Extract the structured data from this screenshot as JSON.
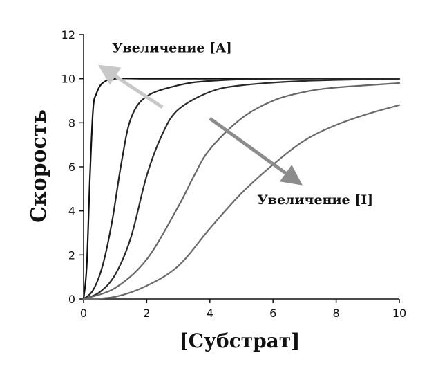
{
  "chart_data": {
    "type": "line",
    "xlabel": "[Субстрат]",
    "ylabel": "Скорость",
    "xlim": [
      0,
      10
    ],
    "ylim": [
      0,
      12
    ],
    "xticks": [
      0,
      2,
      4,
      6,
      8,
      10
    ],
    "yticks": [
      0,
      2,
      4,
      6,
      8,
      10,
      12
    ],
    "grid": false,
    "series": [
      {
        "x": [
          0,
          0.1,
          0.2,
          0.3,
          0.4,
          0.6,
          1,
          2,
          4,
          10
        ],
        "values": [
          0,
          1.5,
          5.5,
          8.6,
          9.3,
          9.8,
          10,
          10,
          10,
          10
        ]
      },
      {
        "x": [
          0,
          0.3,
          0.6,
          0.9,
          1.2,
          1.5,
          2,
          3,
          4,
          6,
          10
        ],
        "values": [
          0,
          0.4,
          1.5,
          3.5,
          6.2,
          8.2,
          9.2,
          9.7,
          9.9,
          10,
          10
        ]
      },
      {
        "x": [
          0,
          0.5,
          1,
          1.5,
          2,
          2.5,
          3,
          4,
          5,
          7,
          10
        ],
        "values": [
          0,
          0.3,
          1.1,
          2.8,
          5.6,
          7.5,
          8.6,
          9.4,
          9.7,
          9.9,
          10
        ]
      },
      {
        "x": [
          0,
          1,
          2,
          3,
          3.5,
          4,
          5,
          6,
          7,
          8,
          10
        ],
        "values": [
          0,
          0.5,
          1.8,
          4.2,
          5.6,
          6.8,
          8.2,
          9,
          9.4,
          9.6,
          9.8
        ]
      },
      {
        "x": [
          0,
          1,
          2,
          3,
          4,
          5,
          6,
          7,
          8,
          9,
          10
        ],
        "values": [
          0,
          0.1,
          0.6,
          1.5,
          3.2,
          4.8,
          6.1,
          7.2,
          7.9,
          8.4,
          8.8
        ]
      }
    ],
    "annotations": [
      {
        "text": "Увеличение [A]",
        "x": 0.9,
        "y": 11.2,
        "arrow_from": [
          2.5,
          8.7
        ],
        "arrow_to": [
          0.6,
          10.5
        ],
        "color": "#c8c8c8"
      },
      {
        "text": "Увеличение [I]",
        "x": 5.5,
        "y": 4.3,
        "arrow_from": [
          4,
          8.2
        ],
        "arrow_to": [
          6.8,
          5.3
        ],
        "color": "#8c8c8c"
      }
    ],
    "colors": {
      "axis": "#111111",
      "series": [
        "#111111",
        "#222222",
        "#2a2a2a",
        "#666666",
        "#6a6a6a"
      ]
    }
  }
}
